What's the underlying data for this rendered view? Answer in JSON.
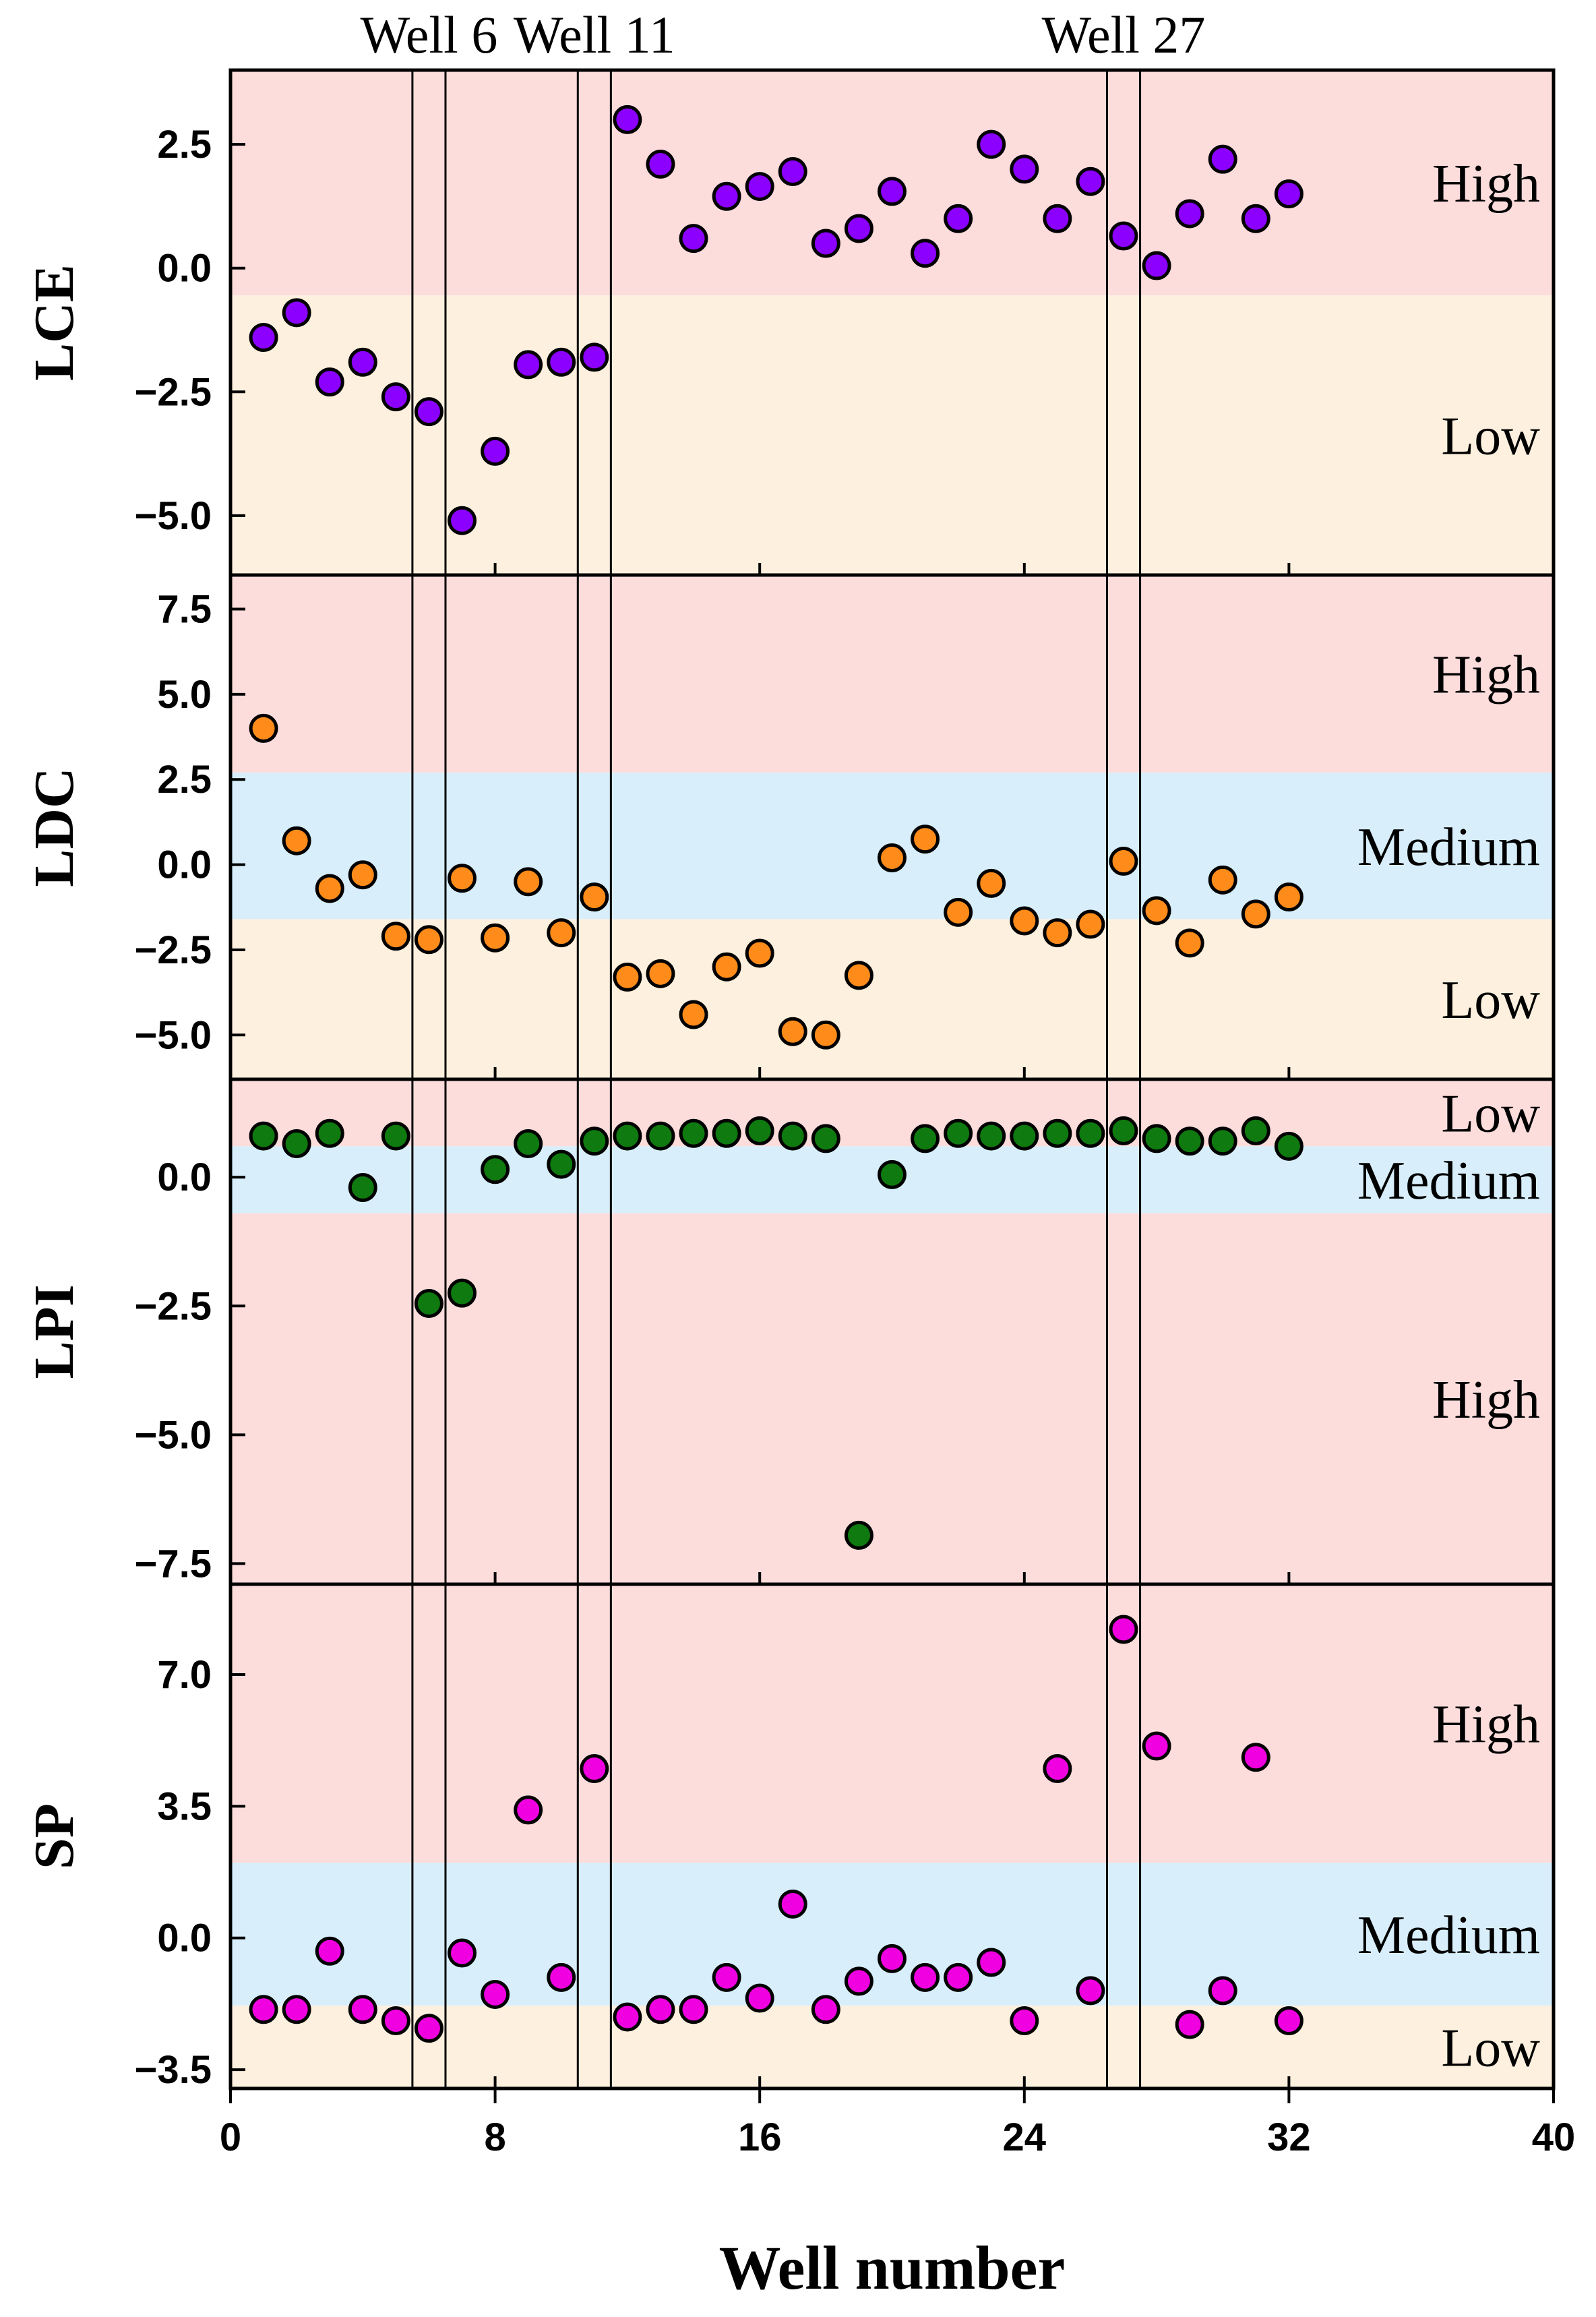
{
  "chart_data": {
    "type": "scatter",
    "xlabel": "Well number",
    "xlim": [
      0,
      40
    ],
    "xticks": [
      0,
      8,
      16,
      24,
      32,
      40
    ],
    "x": [
      1,
      2,
      3,
      4,
      5,
      6,
      7,
      8,
      9,
      10,
      11,
      12,
      13,
      14,
      15,
      16,
      17,
      18,
      19,
      20,
      21,
      22,
      23,
      24,
      25,
      26,
      27,
      28,
      29,
      30,
      31,
      32
    ],
    "highlighted_wells": [
      {
        "label": "Well 6",
        "x": 6
      },
      {
        "label": "Well 11",
        "x": 11
      },
      {
        "label": "Well 27",
        "x": 27
      }
    ],
    "panels": [
      {
        "id": "lce",
        "ylabel": "LCE",
        "ylim": [
          -6.2,
          4.0
        ],
        "yticks": [
          -5.0,
          -2.5,
          0.0,
          2.5
        ],
        "tick_labels": [
          "−5.0",
          "−2.5",
          "0.0",
          "2.5"
        ],
        "marker_color": "#8B00FF",
        "bands": [
          {
            "label": "High",
            "from": -0.55,
            "to": 4.0,
            "color": "#fddcdc"
          },
          {
            "label": "Low",
            "from": -6.2,
            "to": -0.55,
            "color": "#fdf0de"
          }
        ],
        "values": [
          -1.4,
          -0.9,
          -2.3,
          -1.9,
          -2.6,
          -2.9,
          -5.1,
          -3.7,
          -1.95,
          -1.9,
          -1.8,
          3.0,
          2.1,
          0.6,
          1.45,
          1.65,
          1.95,
          0.5,
          0.8,
          1.55,
          0.3,
          1.0,
          2.5,
          2.0,
          1.0,
          1.75,
          0.65,
          0.05,
          1.1,
          2.2,
          1.0,
          1.5
        ]
      },
      {
        "id": "ldc",
        "ylabel": "LDC",
        "ylim": [
          -6.3,
          8.5
        ],
        "yticks": [
          -5.0,
          -2.5,
          0.0,
          2.5,
          5.0,
          7.5
        ],
        "tick_labels": [
          "−5.0",
          "−2.5",
          "0.0",
          "2.5",
          "5.0",
          "7.5"
        ],
        "marker_color": "#FF8C1A",
        "bands": [
          {
            "label": "High",
            "from": 2.7,
            "to": 8.5,
            "color": "#fddcdc"
          },
          {
            "label": "Medium",
            "from": -1.6,
            "to": 2.7,
            "color": "#d8effb"
          },
          {
            "label": "Low",
            "from": -6.3,
            "to": -1.6,
            "color": "#fdf0de"
          }
        ],
        "values": [
          4.0,
          0.7,
          -0.7,
          -0.3,
          -2.1,
          -2.2,
          -0.4,
          -2.15,
          -0.5,
          -2.0,
          -0.95,
          -3.3,
          -3.2,
          -4.4,
          -3.0,
          -2.6,
          -4.9,
          -5.0,
          -3.25,
          0.2,
          0.75,
          -1.4,
          -0.55,
          -1.65,
          -2.0,
          -1.75,
          0.1,
          -1.35,
          -2.3,
          -0.45,
          -1.45,
          -0.95
        ]
      },
      {
        "id": "lpi",
        "ylabel": "LPI",
        "ylim": [
          -7.9,
          1.9
        ],
        "yticks": [
          -7.5,
          -5.0,
          -2.5,
          0.0
        ],
        "tick_labels": [
          "−7.5",
          "−5.0",
          "−2.5",
          "0.0"
        ],
        "marker_color": "#0F7A0F",
        "bands": [
          {
            "label": "Low",
            "from": 0.6,
            "to": 1.9,
            "color": "#fddcdc"
          },
          {
            "label": "Medium",
            "from": -0.7,
            "to": 0.6,
            "color": "#d8effb"
          },
          {
            "label": "High",
            "from": -7.9,
            "to": -0.7,
            "color": "#fddcdc"
          }
        ],
        "values": [
          0.8,
          0.65,
          0.85,
          -0.2,
          0.8,
          -2.45,
          -2.25,
          0.15,
          0.65,
          0.25,
          0.7,
          0.8,
          0.8,
          0.85,
          0.85,
          0.9,
          0.8,
          0.75,
          -6.95,
          0.05,
          0.75,
          0.85,
          0.8,
          0.8,
          0.85,
          0.85,
          0.9,
          0.75,
          0.7,
          0.7,
          0.9,
          0.6
        ]
      },
      {
        "id": "sp",
        "ylabel": "SP",
        "ylim": [
          -4.0,
          9.4
        ],
        "yticks": [
          -3.5,
          0.0,
          3.5,
          7.0
        ],
        "tick_labels": [
          "−3.5",
          "0.0",
          "3.5",
          "7.0"
        ],
        "marker_color": "#F000E0",
        "bands": [
          {
            "label": "High",
            "from": 2.0,
            "to": 9.4,
            "color": "#fddcdc"
          },
          {
            "label": "Medium",
            "from": -1.8,
            "to": 2.0,
            "color": "#d8effb"
          },
          {
            "label": "Low",
            "from": -4.0,
            "to": -1.8,
            "color": "#fdf0de"
          }
        ],
        "values": [
          -1.9,
          -1.9,
          -0.35,
          -1.9,
          -2.2,
          -2.4,
          -0.4,
          -1.5,
          3.4,
          -1.05,
          4.5,
          -2.1,
          -1.9,
          -1.9,
          -1.05,
          -1.6,
          0.9,
          -1.9,
          -1.15,
          -0.55,
          -1.05,
          -1.05,
          -0.65,
          -2.2,
          4.5,
          -1.4,
          8.2,
          5.1,
          -2.3,
          -1.4,
          4.8,
          -2.2
        ]
      }
    ]
  }
}
